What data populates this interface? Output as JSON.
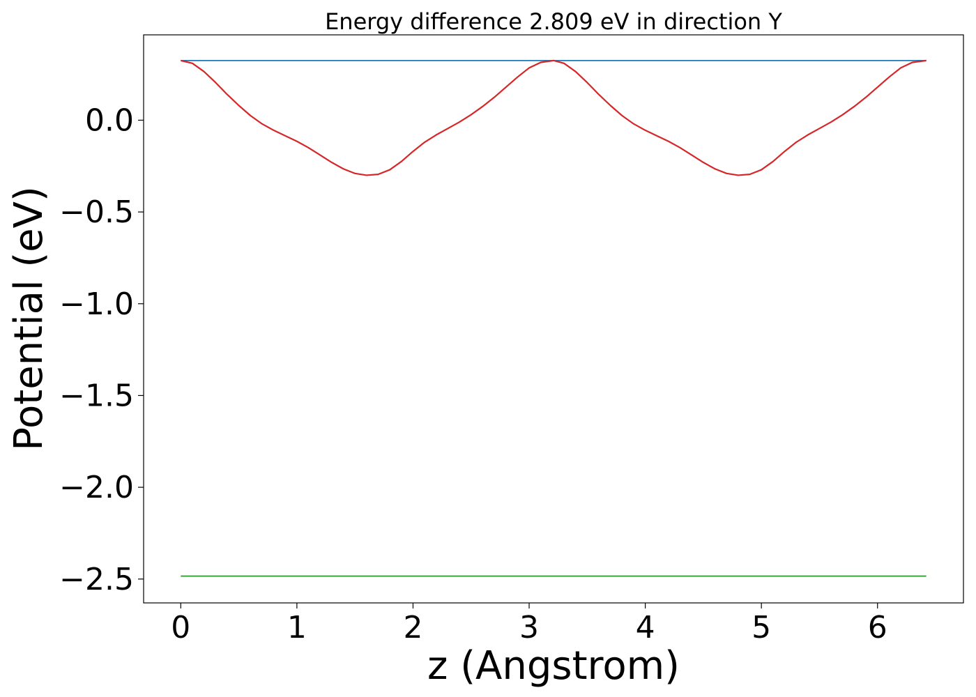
{
  "chart_data": {
    "type": "line",
    "title": "Energy difference 2.809 eV in direction Y",
    "xlabel": "z (Angstrom)",
    "ylabel": "Potential (eV)",
    "xlim": [
      -0.32,
      6.74
    ],
    "ylim": [
      -2.63,
      0.465
    ],
    "xticks": [
      0,
      1,
      2,
      3,
      4,
      5,
      6
    ],
    "xtick_labels": [
      "0",
      "1",
      "2",
      "3",
      "4",
      "5",
      "6"
    ],
    "yticks": [
      0.0,
      -0.5,
      -1.0,
      -1.5,
      -2.0,
      -2.5
    ],
    "ytick_labels": [
      "0.0",
      "−0.5",
      "−1.0",
      "−1.5",
      "−2.0",
      "−2.5"
    ],
    "grid": false,
    "series": [
      {
        "color": "#1f77b4",
        "x": [
          0,
          6.42
        ],
        "y": [
          0.325,
          0.325
        ]
      },
      {
        "color": "#d62728",
        "x": [
          0,
          0.1,
          0.2,
          0.3,
          0.4,
          0.5,
          0.6,
          0.7,
          0.8,
          0.9,
          1.0,
          1.1,
          1.2,
          1.3,
          1.4,
          1.5,
          1.6,
          1.7,
          1.8,
          1.9,
          2.0,
          2.1,
          2.2,
          2.3,
          2.4,
          2.5,
          2.6,
          2.7,
          2.8,
          2.9,
          3.0,
          3.1,
          3.21,
          3.3,
          3.4,
          3.5,
          3.6,
          3.7,
          3.8,
          3.9,
          4.0,
          4.1,
          4.2,
          4.3,
          4.4,
          4.5,
          4.6,
          4.7,
          4.8,
          4.9,
          5.0,
          5.1,
          5.2,
          5.3,
          5.4,
          5.5,
          5.6,
          5.7,
          5.8,
          5.9,
          6.0,
          6.1,
          6.2,
          6.3,
          6.42
        ],
        "y": [
          0.325,
          0.31,
          0.265,
          0.205,
          0.14,
          0.08,
          0.025,
          -0.02,
          -0.055,
          -0.085,
          -0.115,
          -0.15,
          -0.19,
          -0.23,
          -0.265,
          -0.29,
          -0.3,
          -0.295,
          -0.27,
          -0.225,
          -0.17,
          -0.12,
          -0.08,
          -0.045,
          -0.01,
          0.03,
          0.075,
          0.125,
          0.18,
          0.235,
          0.285,
          0.315,
          0.325,
          0.31,
          0.265,
          0.205,
          0.14,
          0.08,
          0.025,
          -0.02,
          -0.055,
          -0.085,
          -0.115,
          -0.15,
          -0.19,
          -0.23,
          -0.265,
          -0.29,
          -0.3,
          -0.295,
          -0.27,
          -0.225,
          -0.17,
          -0.12,
          -0.08,
          -0.045,
          -0.01,
          0.03,
          0.075,
          0.125,
          0.18,
          0.235,
          0.285,
          0.315,
          0.325
        ]
      },
      {
        "color": "#2ca02c",
        "x": [
          0,
          6.42
        ],
        "y": [
          -2.484,
          -2.484
        ]
      }
    ]
  }
}
